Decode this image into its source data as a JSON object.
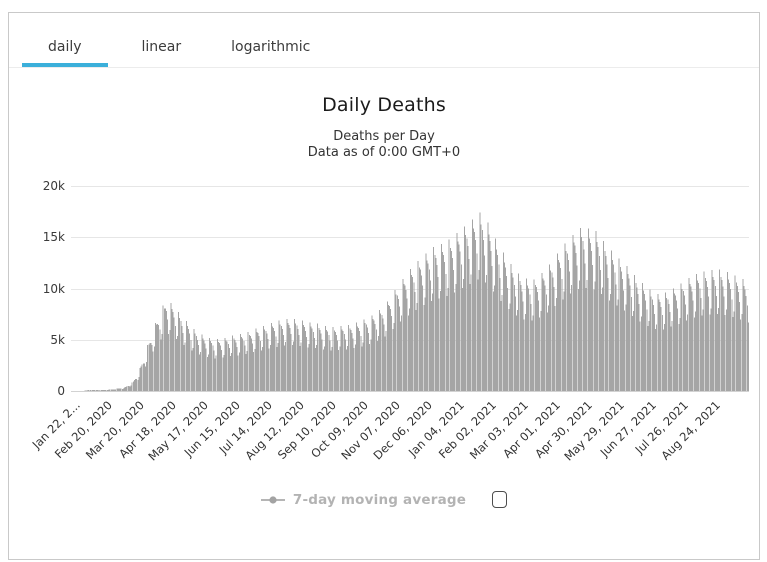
{
  "tabs": [
    {
      "label": "daily",
      "active": true
    },
    {
      "label": "linear",
      "active": false
    },
    {
      "label": "logarithmic",
      "active": false
    }
  ],
  "chart": {
    "title": "Daily Deaths",
    "subtitle1": "Deaths per Day",
    "subtitle2": "Data as of 0:00 GMT+0"
  },
  "legend": {
    "label": "7-day moving average",
    "checkbox_checked": false
  },
  "colors": {
    "accent": "#3bafda",
    "bar": "#a5a5a5",
    "grid": "#e6e6e6",
    "zero_line": "#d2d2d2",
    "frame_border": "#c9c9c9",
    "axis_text": "#333333",
    "legend_text": "#b3b3b3"
  },
  "chart_data": {
    "type": "bar",
    "title": "Daily Deaths",
    "subtitle": [
      "Deaths per Day",
      "Data as of 0:00 GMT+0"
    ],
    "xlabel": "",
    "ylabel": "",
    "ylim": [
      0,
      20000
    ],
    "ytick_values": [
      0,
      5000,
      10000,
      15000,
      20000
    ],
    "ytick_labels": [
      "0",
      "5k",
      "10k",
      "15k",
      "20k"
    ],
    "grid": true,
    "legend": "7-day moving average",
    "legend_position": "bottom",
    "xtick_labels": [
      "Jan 22, 2...",
      "Feb 20, 2020",
      "Mar 20, 2020",
      "Apr 18, 2020",
      "May 17, 2020",
      "Jun 15, 2020",
      "Jul 14, 2020",
      "Aug 12, 2020",
      "Sep 10, 2020",
      "Oct 09, 2020",
      "Nov 07, 2020",
      "Dec 06, 2020",
      "Jan 04, 2021",
      "Feb 02, 2021",
      "Mar 03, 2021",
      "Apr 01, 2021",
      "Apr 30, 2021",
      "May 29, 2021",
      "Jun 27, 2021",
      "Jul 26, 2021",
      "Aug 24, 2021"
    ],
    "tick_interval_days": 29,
    "start_date": "2020-01-22",
    "days": 614,
    "series_name": "Daily Deaths",
    "envelope_points_7day_avg": [
      [
        0,
        10
      ],
      [
        10,
        40
      ],
      [
        20,
        100
      ],
      [
        30,
        90
      ],
      [
        40,
        180
      ],
      [
        48,
        300
      ],
      [
        55,
        700
      ],
      [
        60,
        1400
      ],
      [
        65,
        2600
      ],
      [
        70,
        4000
      ],
      [
        75,
        5300
      ],
      [
        80,
        6400
      ],
      [
        86,
        7500
      ],
      [
        92,
        7000
      ],
      [
        99,
        6200
      ],
      [
        107,
        5400
      ],
      [
        114,
        4800
      ],
      [
        122,
        4400
      ],
      [
        130,
        4200
      ],
      [
        138,
        4300
      ],
      [
        145,
        4500
      ],
      [
        152,
        4600
      ],
      [
        160,
        4800
      ],
      [
        168,
        5100
      ],
      [
        175,
        5300
      ],
      [
        183,
        5600
      ],
      [
        191,
        5800
      ],
      [
        199,
        5900
      ],
      [
        206,
        5800
      ],
      [
        214,
        5600
      ],
      [
        222,
        5500
      ],
      [
        229,
        5300
      ],
      [
        237,
        5200
      ],
      [
        245,
        5300
      ],
      [
        252,
        5400
      ],
      [
        260,
        5600
      ],
      [
        267,
        5900
      ],
      [
        275,
        6300
      ],
      [
        283,
        6900
      ],
      [
        290,
        7800
      ],
      [
        298,
        8900
      ],
      [
        306,
        9800
      ],
      [
        313,
        10500
      ],
      [
        320,
        11100
      ],
      [
        328,
        11700
      ],
      [
        336,
        12000
      ],
      [
        344,
        12400
      ],
      [
        351,
        13000
      ],
      [
        359,
        13600
      ],
      [
        365,
        14100
      ],
      [
        370,
        14500
      ],
      [
        377,
        13700
      ],
      [
        385,
        12200
      ],
      [
        394,
        10800
      ],
      [
        403,
        9700
      ],
      [
        410,
        9200
      ],
      [
        418,
        9000
      ],
      [
        426,
        9600
      ],
      [
        434,
        10400
      ],
      [
        441,
        11300
      ],
      [
        449,
        12200
      ],
      [
        456,
        12900
      ],
      [
        462,
        13300
      ],
      [
        468,
        13200
      ],
      [
        475,
        13000
      ],
      [
        482,
        12200
      ],
      [
        490,
        11300
      ],
      [
        497,
        10700
      ],
      [
        505,
        10000
      ],
      [
        512,
        9200
      ],
      [
        520,
        8500
      ],
      [
        526,
        8100
      ],
      [
        530,
        7900
      ],
      [
        536,
        7900
      ],
      [
        540,
        8100
      ],
      [
        548,
        8500
      ],
      [
        556,
        9000
      ],
      [
        563,
        9400
      ],
      [
        571,
        9700
      ],
      [
        578,
        9800
      ],
      [
        586,
        9900
      ],
      [
        591,
        9800
      ],
      [
        596,
        9600
      ],
      [
        601,
        9400
      ],
      [
        606,
        9200
      ],
      [
        610,
        9000
      ],
      [
        613,
        8800
      ]
    ],
    "weekday_multipliers": [
      1.13,
      1.1,
      1.04,
      0.94,
      0.76,
      0.82,
      1.2
    ]
  }
}
